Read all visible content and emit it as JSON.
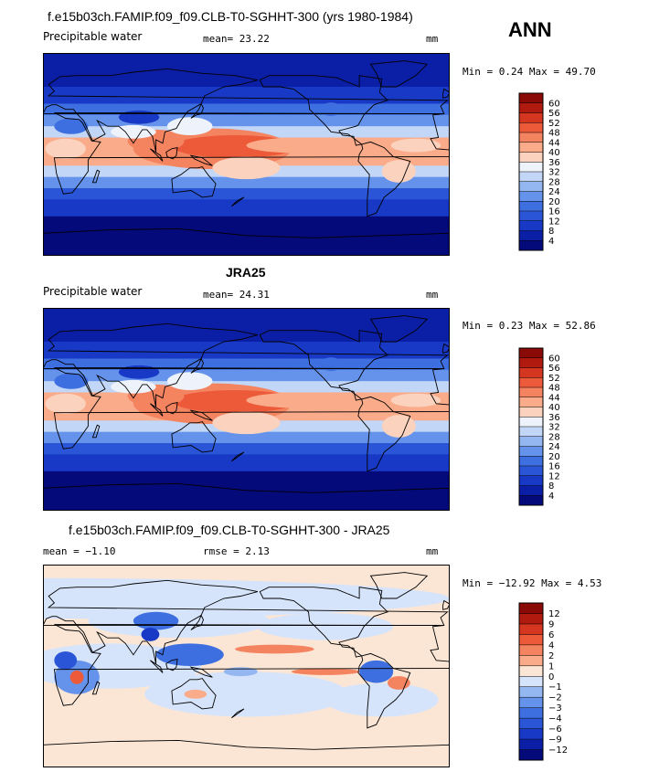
{
  "header": {
    "title": "f.e15b03ch.FAMIP.f09_f09.CLB-T0-SGHHT-300 (yrs 1980-1984)",
    "season": "ANN"
  },
  "panels": [
    {
      "title": "",
      "left_label": "Precipitable water",
      "stat1": "mean=  23.22",
      "stat2": "",
      "units": "mm",
      "minmax": "Min =   0.24 Max =  49.70",
      "kind": "abs"
    },
    {
      "title": "JRA25",
      "left_label": "Precipitable water",
      "stat1": "mean=  24.31",
      "stat2": "",
      "units": "mm",
      "minmax": "Min =   0.23 Max =  52.86",
      "kind": "abs"
    },
    {
      "title": "f.e15b03ch.FAMIP.f09_f09.CLB-T0-SGHHT-300 - JRA25",
      "left_label": "",
      "stat1": "mean =  −1.10",
      "stat2": "rmse =   2.13",
      "units": "mm",
      "minmax": "Min = −12.92 Max =   4.53",
      "kind": "diff"
    }
  ],
  "chart_data": [
    {
      "type": "heatmap",
      "title": "",
      "subtitle": "Precipitable water",
      "units": "mm",
      "mean": 23.22,
      "min": 0.24,
      "max": 49.7,
      "colorbar_levels": [
        4,
        8,
        12,
        16,
        20,
        24,
        28,
        32,
        36,
        40,
        44,
        48,
        52,
        56,
        60
      ],
      "colorbar_colors": [
        "#040a7a",
        "#0b1fa6",
        "#1838c6",
        "#2a55d6",
        "#3e6fe0",
        "#6592ea",
        "#94b6f1",
        "#c2d6f7",
        "#eef3fb",
        "#fbd2bd",
        "#f9ab8a",
        "#f48360",
        "#ec5a3a",
        "#d4361f",
        "#b01a0f",
        "#8a0a08"
      ]
    },
    {
      "type": "heatmap",
      "title": "JRA25",
      "subtitle": "Precipitable water",
      "units": "mm",
      "mean": 24.31,
      "min": 0.23,
      "max": 52.86,
      "colorbar_levels": [
        4,
        8,
        12,
        16,
        20,
        24,
        28,
        32,
        36,
        40,
        44,
        48,
        52,
        56,
        60
      ],
      "colorbar_colors": [
        "#040a7a",
        "#0b1fa6",
        "#1838c6",
        "#2a55d6",
        "#3e6fe0",
        "#6592ea",
        "#94b6f1",
        "#c2d6f7",
        "#eef3fb",
        "#fbd2bd",
        "#f9ab8a",
        "#f48360",
        "#ec5a3a",
        "#d4361f",
        "#b01a0f",
        "#8a0a08"
      ]
    },
    {
      "type": "heatmap",
      "title": "f.e15b03ch.FAMIP.f09_f09.CLB-T0-SGHHT-300 - JRA25",
      "units": "mm",
      "mean": -1.1,
      "rmse": 2.13,
      "min": -12.92,
      "max": 4.53,
      "colorbar_levels": [
        -12,
        -9,
        -6,
        -4,
        -3,
        -2,
        -1,
        0,
        1,
        2,
        4,
        6,
        9,
        12
      ],
      "colorbar_labels": [
        "−12",
        "−9",
        "−6",
        "−4",
        "−3",
        "−2",
        "−1",
        "0",
        "1",
        "2",
        "4",
        "6",
        "9",
        "12"
      ],
      "colorbar_colors": [
        "#040a7a",
        "#0b1fa6",
        "#1838c6",
        "#2a55d6",
        "#3e6fe0",
        "#6592ea",
        "#94b6f1",
        "#d6e4fb",
        "#fbe6d6",
        "#f9ab8a",
        "#f48360",
        "#ec5a3a",
        "#d4361f",
        "#b01a0f",
        "#8a0a08"
      ]
    }
  ]
}
